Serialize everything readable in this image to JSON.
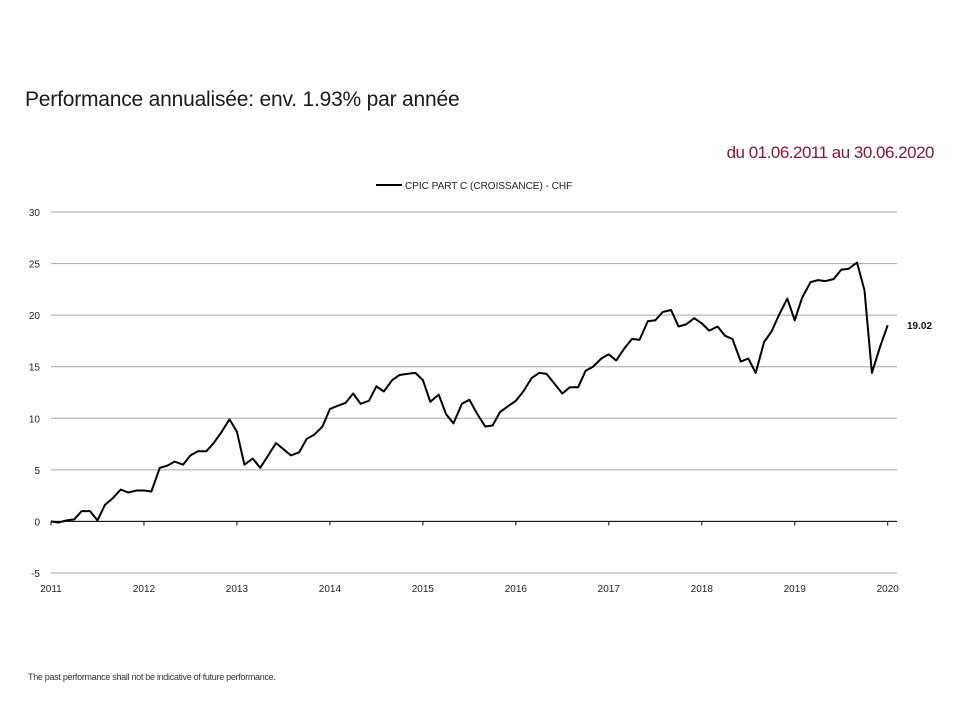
{
  "title": "Performance annualisée: env. 1.93% par année",
  "date_range": "du 01.06.2011 au 30.06.2020",
  "footnote": "The past performance shall not be indicative of future performance.",
  "colors": {
    "line": "#000000",
    "grid": "#a6a6a6",
    "date_range": "#8a1538"
  },
  "chart_data": {
    "type": "line",
    "title": "",
    "xlabel": "",
    "ylabel": "",
    "legend": "top-center",
    "ylim": [
      -5,
      30
    ],
    "yticks": [
      -5,
      0,
      5,
      10,
      15,
      20,
      25,
      30
    ],
    "xlim": [
      2011,
      2020.1
    ],
    "xticks": [
      2011,
      2012,
      2013,
      2014,
      2015,
      2016,
      2017,
      2018,
      2019,
      2020
    ],
    "grid": true,
    "end_label": "19.02",
    "series": [
      {
        "name": "CPIC PART C (CROISSANCE) - CHF",
        "x": [
          2011.0,
          2011.08,
          2011.17,
          2011.25,
          2011.33,
          2011.42,
          2011.5,
          2011.58,
          2011.67,
          2011.75,
          2011.83,
          2011.92,
          2012.0,
          2012.08,
          2012.17,
          2012.25,
          2012.33,
          2012.42,
          2012.5,
          2012.58,
          2012.67,
          2012.75,
          2012.83,
          2012.92,
          2013.0,
          2013.08,
          2013.17,
          2013.25,
          2013.33,
          2013.42,
          2013.5,
          2013.58,
          2013.67,
          2013.75,
          2013.83,
          2013.92,
          2014.0,
          2014.08,
          2014.17,
          2014.25,
          2014.33,
          2014.42,
          2014.5,
          2014.58,
          2014.67,
          2014.75,
          2014.83,
          2014.92,
          2015.0,
          2015.08,
          2015.17,
          2015.25,
          2015.33,
          2015.42,
          2015.5,
          2015.58,
          2015.67,
          2015.75,
          2015.83,
          2015.92,
          2016.0,
          2016.08,
          2016.17,
          2016.25,
          2016.33,
          2016.42,
          2016.5,
          2016.58,
          2016.67,
          2016.75,
          2016.83,
          2016.92,
          2017.0,
          2017.08,
          2017.17,
          2017.25,
          2017.33,
          2017.42,
          2017.5,
          2017.58,
          2017.67,
          2017.75,
          2017.83,
          2017.92,
          2018.0,
          2018.08,
          2018.17,
          2018.25,
          2018.33,
          2018.42,
          2018.5,
          2018.58,
          2018.67,
          2018.75,
          2018.83,
          2018.92,
          2019.0,
          2019.08,
          2019.17,
          2019.25,
          2019.33,
          2019.42,
          2019.5,
          2019.58,
          2019.67,
          2019.75,
          2019.83,
          2019.92,
          2020.0
        ],
        "values": [
          0.0,
          -0.1,
          0.1,
          0.2,
          1.0,
          1.0,
          0.1,
          1.6,
          2.3,
          3.1,
          2.8,
          3.0,
          3.0,
          2.9,
          5.2,
          5.4,
          5.8,
          5.5,
          6.4,
          6.8,
          6.8,
          7.6,
          8.6,
          9.9,
          8.7,
          5.5,
          6.1,
          5.2,
          6.3,
          7.6,
          7.0,
          6.4,
          6.7,
          8.0,
          8.4,
          9.2,
          10.9,
          11.2,
          11.5,
          12.4,
          11.4,
          11.7,
          13.1,
          12.6,
          13.7,
          14.2,
          14.3,
          14.4,
          13.7,
          11.6,
          12.3,
          10.4,
          9.5,
          11.4,
          11.8,
          10.5,
          9.2,
          9.3,
          10.6,
          11.2,
          11.7,
          12.6,
          13.9,
          14.4,
          14.3,
          13.3,
          12.4,
          13.0,
          13.0,
          14.6,
          15.0,
          15.8,
          16.2,
          15.6,
          16.8,
          17.7,
          17.6,
          19.4,
          19.5,
          20.3,
          20.5,
          18.9,
          19.1,
          19.7,
          19.2,
          18.5,
          18.9,
          18.0,
          17.7,
          15.5,
          15.8,
          14.4,
          17.4,
          18.4,
          20.0,
          21.6,
          19.5,
          21.7,
          23.2,
          23.4,
          23.3,
          23.5,
          24.4,
          24.5,
          25.1,
          22.4,
          14.4,
          17.0,
          19.02
        ]
      }
    ]
  }
}
